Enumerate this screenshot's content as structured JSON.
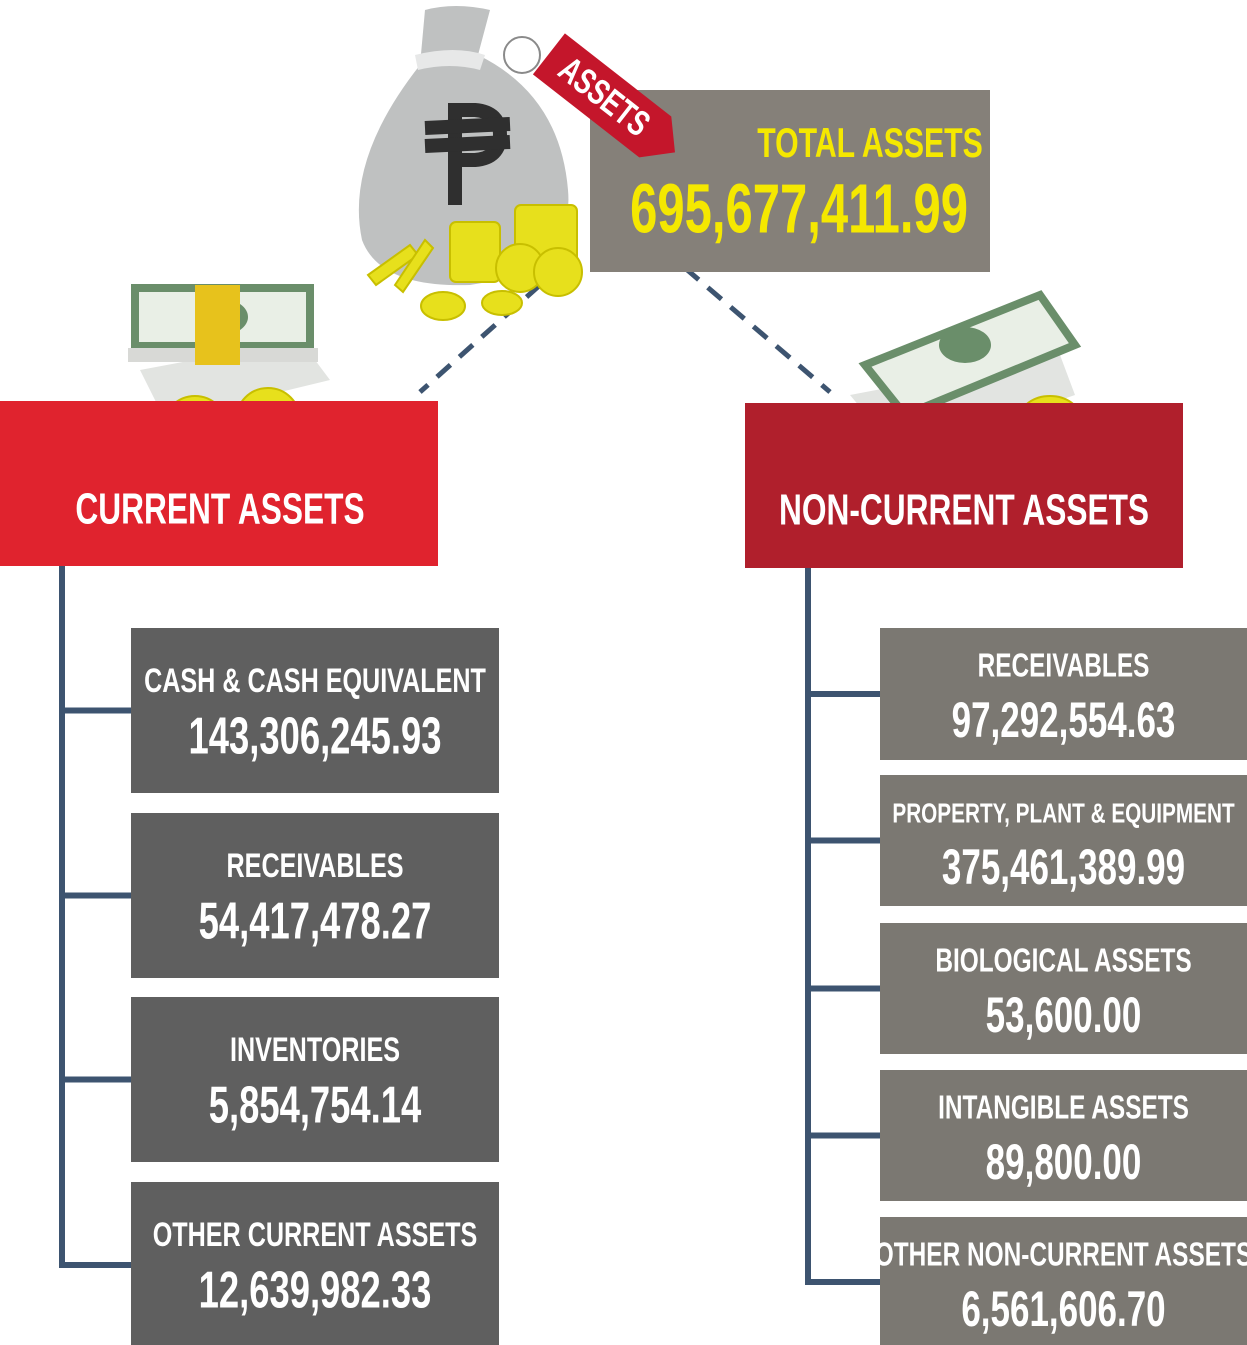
{
  "total": {
    "tag": "ASSETS",
    "label": "TOTAL ASSETS",
    "value": "695,677,411.99"
  },
  "current": {
    "title": "CURRENT ASSETS",
    "items": [
      {
        "label": "CASH & CASH EQUIVALENT",
        "value": "143,306,245.93"
      },
      {
        "label": "RECEIVABLES",
        "value": "54,417,478.27"
      },
      {
        "label": "INVENTORIES",
        "value": "5,854,754.14"
      },
      {
        "label": "OTHER CURRENT ASSETS",
        "value": "12,639,982.33"
      }
    ]
  },
  "non_current": {
    "title": "NON-CURRENT ASSETS",
    "items": [
      {
        "label": "RECEIVABLES",
        "value": "97,292,554.63"
      },
      {
        "label": "PROPERTY, PLANT & EQUIPMENT",
        "value": "375,461,389.99"
      },
      {
        "label": "BIOLOGICAL ASSETS",
        "value": "53,600.00"
      },
      {
        "label": "INTANGIBLE ASSETS",
        "value": "89,800.00"
      },
      {
        "label": "OTHER NON-CURRENT ASSETS",
        "value": "6,561,606.70"
      }
    ]
  }
}
